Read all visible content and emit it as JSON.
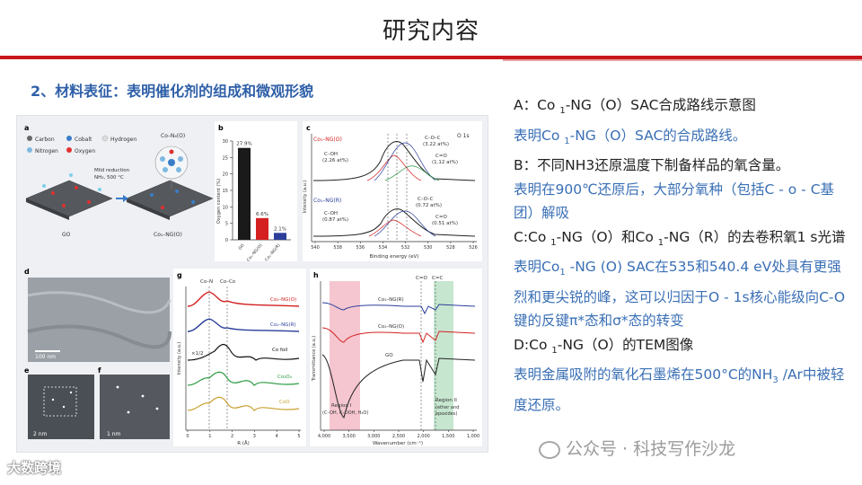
{
  "slide": {
    "title": "研究内容",
    "section_heading": "2、材料表征：表明催化剂的组成和微观形貌"
  },
  "figure": {
    "panel_a": {
      "letter": "a",
      "legend": [
        "Carbon",
        "Cobalt",
        "Hydrogen",
        "Nitrogen",
        "Oxygen"
      ],
      "top_label": "Co–N₄(O)",
      "arrow_label_1": "Mild reduction",
      "arrow_label_2": "NH₃, 500 °C",
      "left_caption": "GO",
      "right_caption": "Co₁–NG(O)"
    },
    "panel_b": {
      "letter": "b",
      "ylabel": "Oxygen content (%)",
      "yticks": [
        "0",
        "5",
        "10",
        "15",
        "20",
        "25",
        "30"
      ],
      "bars": [
        {
          "label": "27.9%",
          "category": "GO",
          "value": 27.9,
          "color": "#1a1a1a"
        },
        {
          "label": "6.6%",
          "category": "Co₁–NG(O)",
          "value": 6.6,
          "color": "#d42020"
        },
        {
          "label": "2.1%",
          "category": "Co₁–NG(R)",
          "value": 2.1,
          "color": "#2b3e9a"
        }
      ]
    },
    "panel_c": {
      "letter": "c",
      "corner": "O 1s",
      "series1": "Co₁–NG(O)",
      "series2": "Co₁–NG(R)",
      "xlabel": "Binding energy (eV)",
      "ylabel": "Intensity (a.u.)",
      "xticks": [
        "540",
        "538",
        "536",
        "534",
        "532",
        "530",
        "528",
        "526"
      ],
      "peaks": [
        {
          "t1": "C–O–C",
          "t2": "(3.22 at%)"
        },
        {
          "t1": "C–OH",
          "t2": "(2.26 at%)"
        },
        {
          "t1": "C=O",
          "t2": "(1.12 at%)"
        },
        {
          "t1": "C–O–C",
          "t2": "(0.72 at%)"
        },
        {
          "t1": "C–OH",
          "t2": "(0.87 at%)"
        },
        {
          "t1": "C=O",
          "t2": "(0.51 at%)"
        }
      ]
    },
    "panel_d": {
      "letter": "d",
      "scale": "100 nm"
    },
    "panel_e": {
      "letter": "e",
      "scale": "2 nm"
    },
    "panel_f": {
      "letter": "f",
      "scale": "1 nm"
    },
    "panel_g": {
      "letter": "g",
      "top1": "Co–N",
      "top2": "Co–Co",
      "labels": [
        "Co₁–NG(O)",
        "Co₁–NG(R)",
        "Co foil",
        "Co₃O₄",
        "CoO"
      ],
      "scale_note": "×1/2",
      "xlabel": "R (Å)",
      "ylabel": "Intensity (a.u.)",
      "xticks": [
        "0",
        "1",
        "2",
        "3",
        "4",
        "5"
      ]
    },
    "panel_h": {
      "letter": "h",
      "top1": "C=O",
      "top2": "C=C",
      "labels": [
        "Co₁–NG(R)",
        "Co₁–NG(O)",
        "GO"
      ],
      "region1": "Region I",
      "region1_sub": "(C–OH, C–OOH, H₂O)",
      "region2": "Region II",
      "region2_sub1": "(ether and",
      "region2_sub2": "epoxides)",
      "xlabel": "Wavenumber (cm⁻¹)",
      "ylabel": "Transmittance (a.u.)",
      "xticks": [
        "4,000",
        "3,500",
        "3,000",
        "2,500",
        "2,000",
        "1,500",
        "1,000"
      ]
    }
  },
  "notes": {
    "a_title_1": "A：Co ",
    "a_title_sub": "1",
    "a_title_2": "-NG（O）SAC合成路线示意图",
    "a_desc_1": "表明Co ",
    "a_desc_sub": "1",
    "a_desc_2": "-NG（O）SAC的合成路线。",
    "b_title": "B：不同NH3还原温度下制备样品的氧含量。",
    "b_desc": "表明在900℃还原后，大部分氧种（包括C - o - C基团）解吸",
    "c_title_1": "C:Co ",
    "c_title_sub1": "1",
    "c_title_2": "-NG（O）和Co ",
    "c_title_sub2": "1",
    "c_title_3": "-NG（R）的去卷积氧1 s光谱",
    "c_desc_1": "表明Co",
    "c_desc_sub": "1",
    "c_desc_2": " -NG (O) SAC在535和540.4 eV处具有更强烈和更尖锐的峰，这可以归因于O - 1s核心能级向C-O键的反键π*态和σ*态的转变",
    "d_title_1": "D:Co ",
    "d_title_sub": "1",
    "d_title_2": "-NG（O）的TEM图像",
    "d_desc_1": "表明金属吸附的氧化石墨烯在500°C的NH",
    "d_desc_sub": "3",
    "d_desc_2": " /Ar中被轻度还原。"
  },
  "watermarks": {
    "left": "大数跨境",
    "right": "公众号 · 科技写作沙龙"
  }
}
